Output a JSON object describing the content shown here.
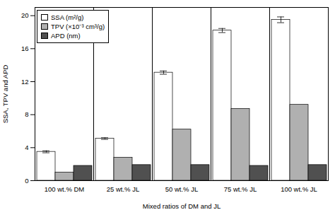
{
  "chart_data": {
    "type": "bar",
    "xlabel": "Mixed ratios of DM and JL",
    "ylabel": "SSA, TPV and APD",
    "categories": [
      "100 wt.% DM",
      "25 wt.% JL",
      "50 wt.% JL",
      "75 wt.% JL",
      "100 wt.% JL"
    ],
    "series": [
      {
        "name": "SSA (m²/g)",
        "color": "#ffffff",
        "values": [
          3.5,
          5.1,
          13.1,
          18.2,
          19.5
        ],
        "errors": [
          0.12,
          0.1,
          0.2,
          0.25,
          0.35
        ]
      },
      {
        "name": "TPV (×10⁻³ cm³/g)",
        "color": "#b0b0b0",
        "values": [
          1.0,
          2.8,
          6.2,
          8.7,
          9.2
        ]
      },
      {
        "name": "APD (nm)",
        "color": "#505050",
        "values": [
          1.8,
          1.9,
          1.9,
          1.8,
          1.9
        ]
      }
    ],
    "ylim": [
      0,
      21
    ],
    "yticks": [
      0,
      4,
      8,
      12,
      16,
      20
    ],
    "grid": false,
    "legend": "upper left"
  }
}
